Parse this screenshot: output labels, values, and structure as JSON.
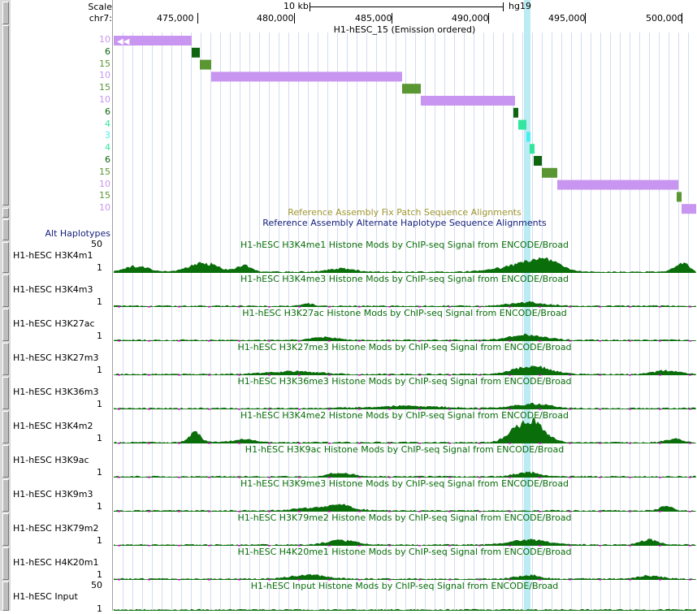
{
  "header": {
    "scale_label": "Scale",
    "scale_value": "10 kb",
    "assembly": "hg19",
    "chrom_label": "chr7:",
    "ticks": [
      "475,000",
      "480,000",
      "485,000",
      "490,000",
      "495,000",
      "500,000"
    ],
    "hmm_track_title": "H1-hESC_15 (Emission ordered)"
  },
  "hmm_states": {
    "labels": [
      "10",
      "6",
      "15",
      "10",
      "15",
      "10",
      "6",
      "4",
      "3",
      "4",
      "6",
      "15",
      "10",
      "15",
      "10"
    ],
    "colors": {
      "10": "#c896f0",
      "6": "#0f640f",
      "15": "#5a9632",
      "4": "#32e6a0",
      "3": "#46f0f0"
    }
  },
  "patch_tracks": {
    "fix_patch": "Reference Assembly Fix Patch Sequence Alignments",
    "alt_haplotype": "Reference Assembly Alternate Haplotype Sequence Alignments",
    "alt_label": "Alt Haplotypes"
  },
  "signal_tracks": [
    {
      "short": "H1-hESC H3K4m1",
      "title": "H1-hESC H3K4me1 Histone Mods by ChIP-seq Signal from ENCODE/Broad",
      "max": "50",
      "min": "1"
    },
    {
      "short": "H1-hESC H3K4m3",
      "title": "H1-hESC H3K4me3 Histone Mods by ChIP-seq Signal from ENCODE/Broad",
      "max": "",
      "min": "1"
    },
    {
      "short": "H1-hESC H3K27ac",
      "title": "H1-hESC H3K27ac Histone Mods by ChIP-seq Signal from ENCODE/Broad",
      "max": "",
      "min": "1"
    },
    {
      "short": "H1-hESC H3K27m3",
      "title": "H1-hESC H3K27me3 Histone Mods by ChIP-seq Signal from ENCODE/Broad",
      "max": "",
      "min": "1"
    },
    {
      "short": "H1-hESC H3K36m3",
      "title": "H1-hESC H3K36me3 Histone Mods by ChIP-seq Signal from ENCODE/Broad",
      "max": "",
      "min": "1"
    },
    {
      "short": "H1-hESC H3K4m2",
      "title": "H1-hESC H3K4me2 Histone Mods by ChIP-seq Signal from ENCODE/Broad",
      "max": "",
      "min": "1"
    },
    {
      "short": "H1-hESC H3K9ac",
      "title": "H1-hESC H3K9ac Histone Mods by ChIP-seq Signal from ENCODE/Broad",
      "max": "",
      "min": "1"
    },
    {
      "short": "H1-hESC H3K9m3",
      "title": "H1-hESC H3K9me3 Histone Mods by ChIP-seq Signal from ENCODE/Broad",
      "max": "",
      "min": "1"
    },
    {
      "short": "H1-hESC H3K79m2",
      "title": "H1-hESC H3K79me2 Histone Mods by ChIP-seq Signal from ENCODE/Broad",
      "max": "",
      "min": "1"
    },
    {
      "short": "H1-hESC H4K20m1",
      "title": "H1-hESC H4K20me1 Histone Mods by ChIP-seq Signal from ENCODE/Broad",
      "max": "",
      "min": "1"
    },
    {
      "short": "H1-hESC Input",
      "title": "H1-hESC Input Histone Mods by ChIP-seq Signal from ENCODE/Broad",
      "max": "50",
      "min": "1"
    }
  ],
  "colors": {
    "signal": "#0a6e0a",
    "grid": "#d2dcf0",
    "highlight": "#aae6f0",
    "fix_patch_text": "#a0962d",
    "alt_text": "#141e7a"
  }
}
